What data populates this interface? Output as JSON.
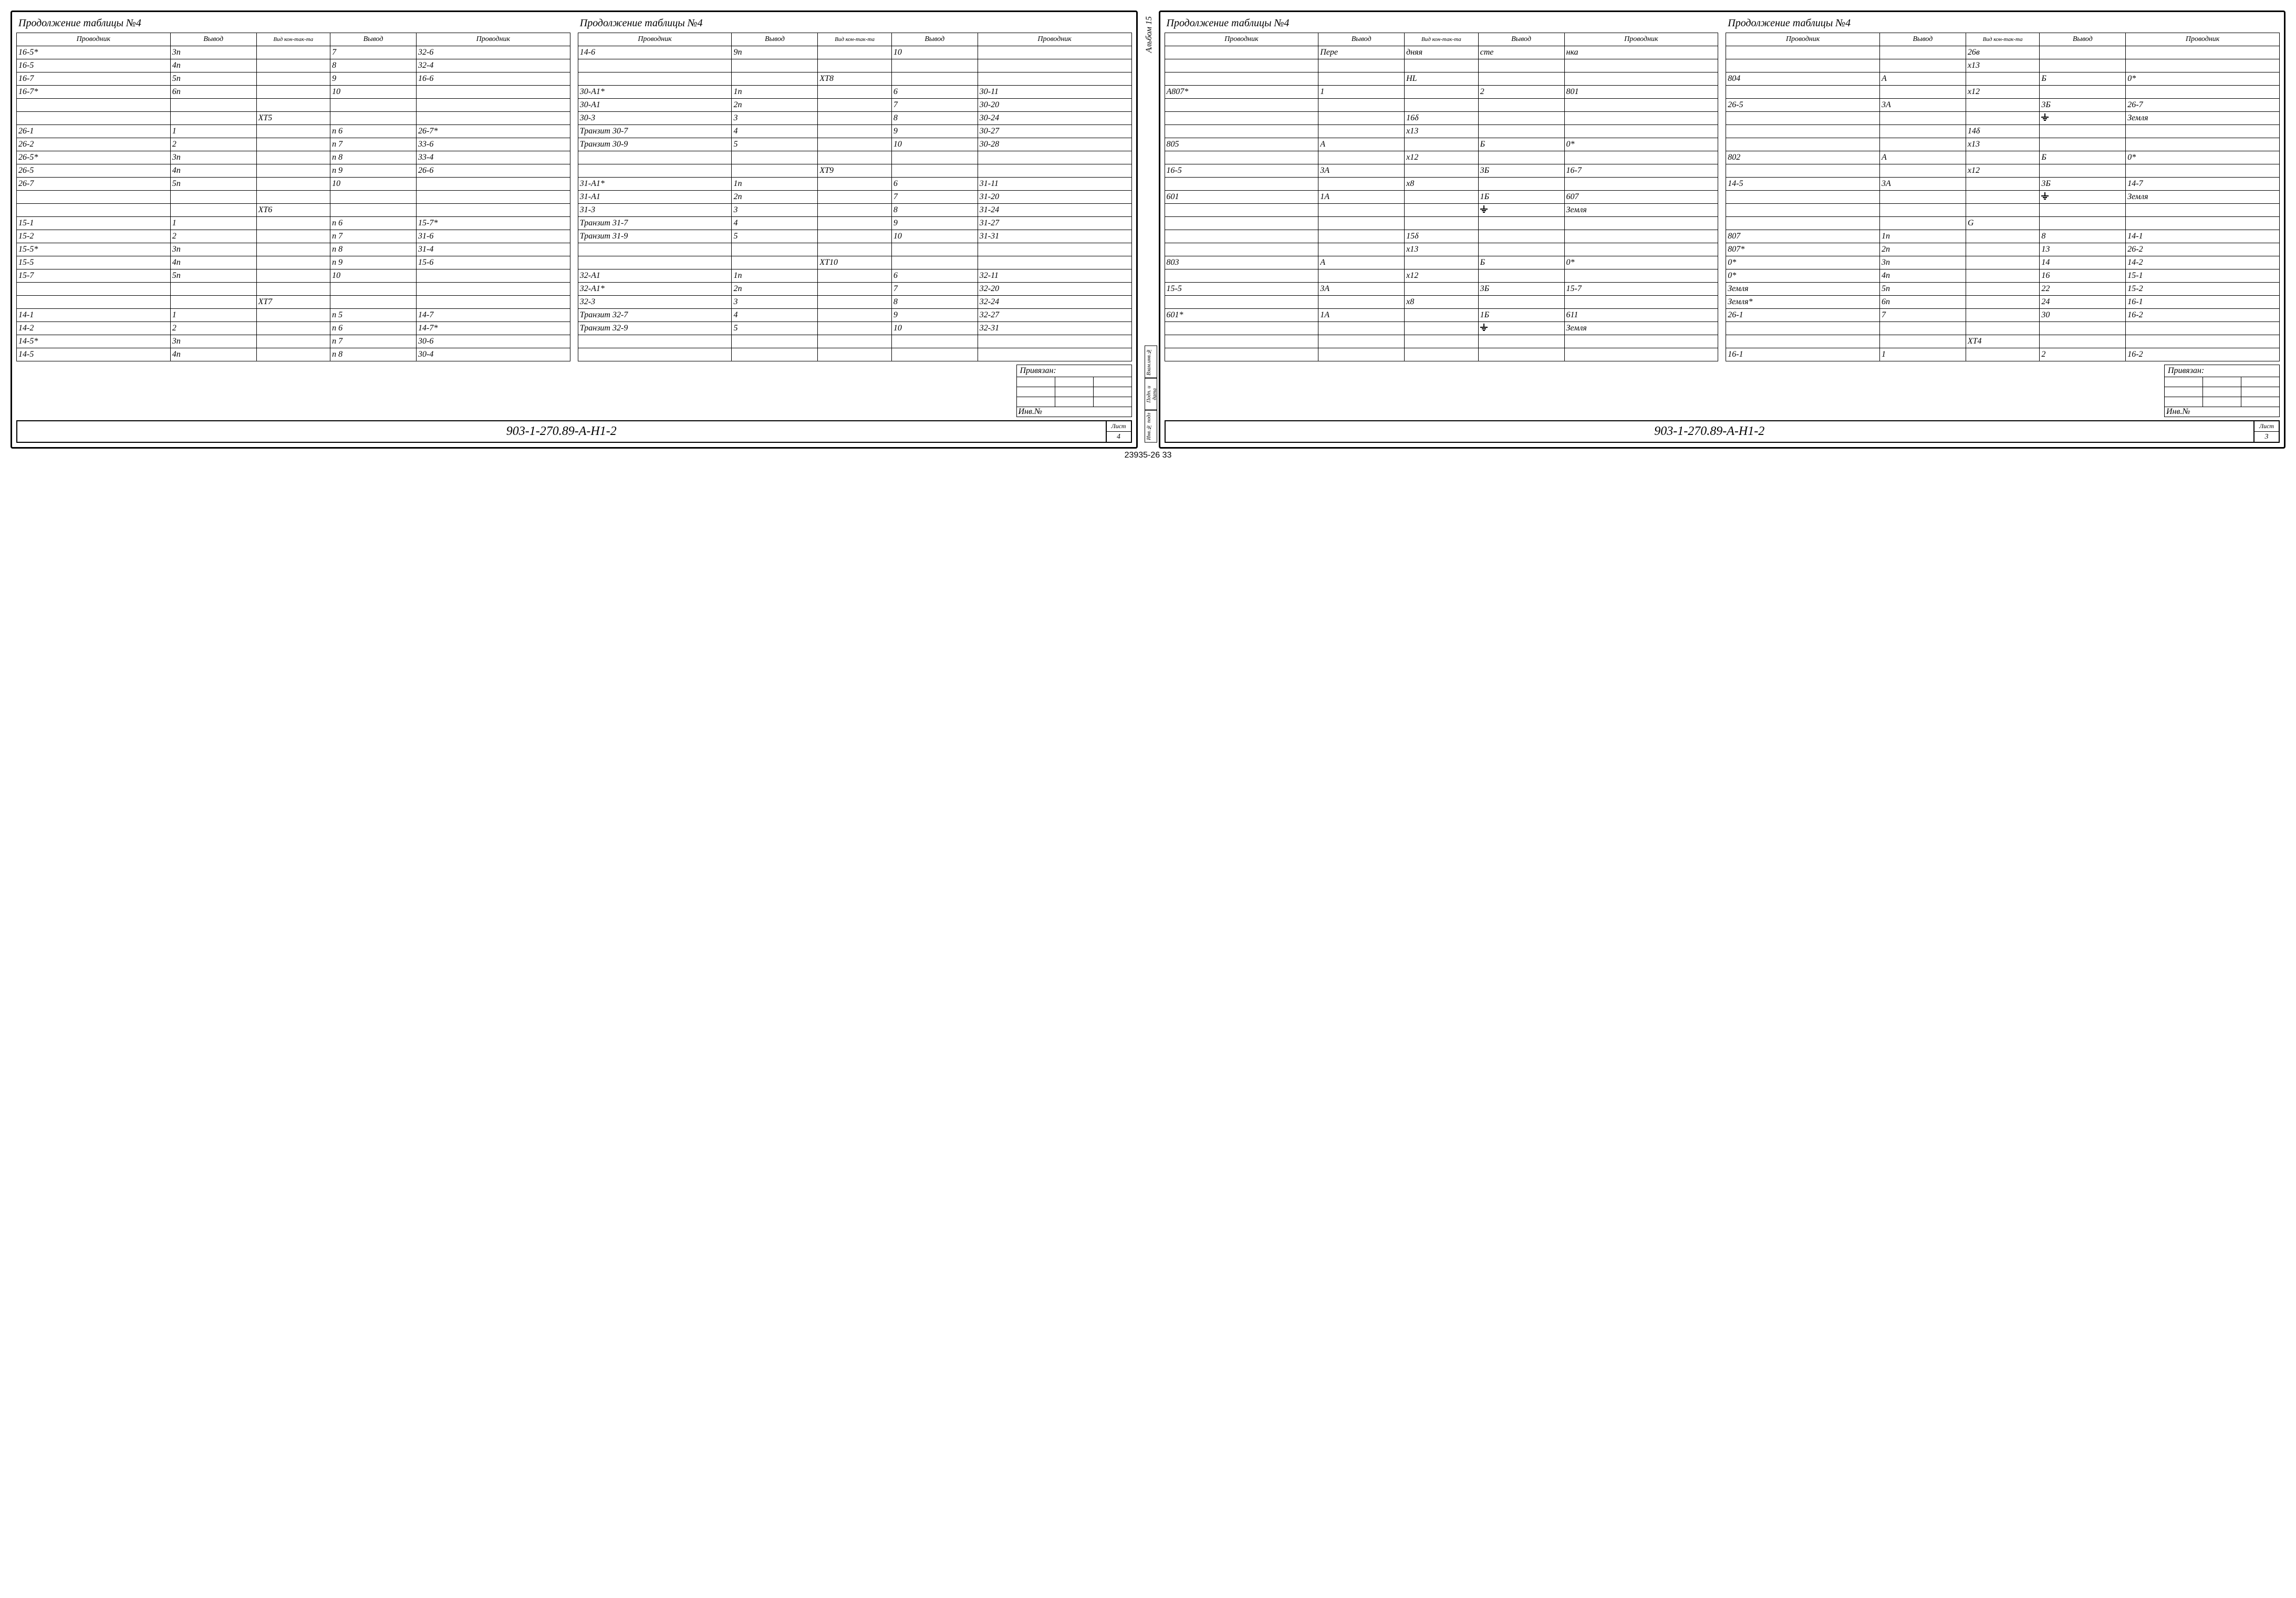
{
  "caption": "Продолжение таблицы №4",
  "headers": {
    "prov": "Проводник",
    "vyv": "Вывод",
    "vid": "Вид кон-так-та"
  },
  "privyazan": "Привязан:",
  "inv": "Инв.№",
  "docnum": "903-1-270.89-А-Н1-2",
  "list_label": "Лист",
  "album": "Альбом 15",
  "side_labels": [
    "Инв.№ подл",
    "Подп. и дата",
    "Взам.инв.№"
  ],
  "bottom_note": "23935-26   33",
  "sheets": [
    {
      "sheetno": "4",
      "tables": [
        {
          "rows": [
            [
              "16-5*",
              "3п",
              "",
              "7",
              "32-6"
            ],
            [
              "16-5",
              "4п",
              "",
              "8",
              "32-4"
            ],
            [
              "16-7",
              "5п",
              "",
              "9",
              "16-6"
            ],
            [
              "16-7*",
              "6п",
              "",
              "10",
              ""
            ],
            [
              "",
              "",
              "",
              "",
              ""
            ],
            [
              "",
              "",
              "ХТ5",
              "",
              ""
            ],
            [
              "26-1",
              "1",
              "",
              "п 6",
              "26-7*"
            ],
            [
              "26-2",
              "2",
              "",
              "п 7",
              "33-6"
            ],
            [
              "26-5*",
              "3п",
              "",
              "п 8",
              "33-4"
            ],
            [
              "26-5",
              "4п",
              "",
              "п 9",
              "26-6"
            ],
            [
              "26-7",
              "5п",
              "",
              "10",
              ""
            ],
            [
              "",
              "",
              "",
              "",
              ""
            ],
            [
              "",
              "",
              "ХТ6",
              "",
              ""
            ],
            [
              "15-1",
              "1",
              "",
              "п 6",
              "15-7*"
            ],
            [
              "15-2",
              "2",
              "",
              "п 7",
              "31-6"
            ],
            [
              "15-5*",
              "3п",
              "",
              "п 8",
              "31-4"
            ],
            [
              "15-5",
              "4п",
              "",
              "п 9",
              "15-6"
            ],
            [
              "15-7",
              "5п",
              "",
              "10",
              ""
            ],
            [
              "",
              "",
              "",
              "",
              ""
            ],
            [
              "",
              "",
              "ХТ7",
              "",
              ""
            ],
            [
              "14-1",
              "1",
              "",
              "п 5",
              "14-7"
            ],
            [
              "14-2",
              "2",
              "",
              "п 6",
              "14-7*"
            ],
            [
              "14-5*",
              "3п",
              "",
              "п 7",
              "30-6"
            ],
            [
              "14-5",
              "4п",
              "",
              "п 8",
              "30-4"
            ]
          ]
        },
        {
          "rows": [
            [
              "14-6",
              "9п",
              "",
              "10",
              ""
            ],
            [
              "",
              "",
              "",
              "",
              ""
            ],
            [
              "",
              "",
              "ХТ8",
              "",
              ""
            ],
            [
              "30-А1*",
              "1п",
              "",
              "6",
              "30-11"
            ],
            [
              "30-А1",
              "2п",
              "",
              "7",
              "30-20"
            ],
            [
              "30-3",
              "3",
              "",
              "8",
              "30-24"
            ],
            [
              "Транзит 30-7",
              "4",
              "",
              "9",
              "30-27"
            ],
            [
              "Транзит 30-9",
              "5",
              "",
              "10",
              "30-28"
            ],
            [
              "",
              "",
              "",
              "",
              ""
            ],
            [
              "",
              "",
              "ХТ9",
              "",
              ""
            ],
            [
              "31-А1*",
              "1п",
              "",
              "6",
              "31-11"
            ],
            [
              "31-А1",
              "2п",
              "",
              "7",
              "31-20"
            ],
            [
              "31-3",
              "3",
              "",
              "8",
              "31-24"
            ],
            [
              "Транзит 31-7",
              "4",
              "",
              "9",
              "31-27"
            ],
            [
              "Транзит 31-9",
              "5",
              "",
              "10",
              "31-31"
            ],
            [
              "",
              "",
              "",
              "",
              ""
            ],
            [
              "",
              "",
              "ХТ10",
              "",
              ""
            ],
            [
              "32-А1",
              "1п",
              "",
              "6",
              "32-11"
            ],
            [
              "32-А1*",
              "2п",
              "",
              "7",
              "32-20"
            ],
            [
              "32-3",
              "3",
              "",
              "8",
              "32-24"
            ],
            [
              "Транзит 32-7",
              "4",
              "",
              "9",
              "32-27"
            ],
            [
              "Транзит 32-9",
              "5",
              "",
              "10",
              "32-31"
            ],
            [
              "",
              "",
              "",
              "",
              ""
            ],
            [
              "",
              "",
              "",
              "",
              ""
            ]
          ]
        }
      ]
    },
    {
      "sheetno": "3",
      "tables": [
        {
          "rows": [
            [
              "",
              "Пере",
              "дняя",
              "сте",
              "нка"
            ],
            [
              "",
              "",
              "",
              "",
              ""
            ],
            [
              "",
              "",
              "HL",
              "",
              ""
            ],
            [
              "А807*",
              "1",
              "",
              "2",
              "801"
            ],
            [
              "",
              "",
              "",
              "",
              ""
            ],
            [
              "",
              "",
              "16δ",
              "",
              ""
            ],
            [
              "",
              "",
              "х13",
              "",
              ""
            ],
            [
              "805",
              "А",
              "",
              "Б",
              "0*"
            ],
            [
              "",
              "",
              "х12",
              "",
              ""
            ],
            [
              "16-5",
              "3А",
              "",
              "3Б",
              "16-7"
            ],
            [
              "",
              "",
              "х8",
              "",
              ""
            ],
            [
              "601",
              "1А",
              "",
              "1Б",
              "607"
            ],
            [
              "",
              "",
              "",
              "⏚",
              "Земля"
            ],
            [
              "",
              "",
              "",
              "",
              ""
            ],
            [
              "",
              "",
              "15δ",
              "",
              ""
            ],
            [
              "",
              "",
              "х13",
              "",
              ""
            ],
            [
              "803",
              "А",
              "",
              "Б",
              "0*"
            ],
            [
              "",
              "",
              "х12",
              "",
              ""
            ],
            [
              "15-5",
              "3А",
              "",
              "3Б",
              "15-7"
            ],
            [
              "",
              "",
              "х8",
              "",
              ""
            ],
            [
              "601*",
              "1А",
              "",
              "1Б",
              "611"
            ],
            [
              "",
              "",
              "",
              "⏚",
              "Земля"
            ],
            [
              "",
              "",
              "",
              "",
              ""
            ],
            [
              "",
              "",
              "",
              "",
              ""
            ]
          ]
        },
        {
          "rows": [
            [
              "",
              "",
              "26в",
              "",
              ""
            ],
            [
              "",
              "",
              "х13",
              "",
              ""
            ],
            [
              "804",
              "А",
              "",
              "Б",
              "0*"
            ],
            [
              "",
              "",
              "х12",
              "",
              ""
            ],
            [
              "26-5",
              "3А",
              "",
              "3Б",
              "26-7"
            ],
            [
              "",
              "",
              "",
              "⏚",
              "Земля"
            ],
            [
              "",
              "",
              "14δ",
              "",
              ""
            ],
            [
              "",
              "",
              "х13",
              "",
              ""
            ],
            [
              "802",
              "А",
              "",
              "Б",
              "0*"
            ],
            [
              "",
              "",
              "х12",
              "",
              ""
            ],
            [
              "14-5",
              "3А",
              "",
              "3Б",
              "14-7"
            ],
            [
              "",
              "",
              "",
              "⏚",
              "Земля"
            ],
            [
              "",
              "",
              "",
              "",
              ""
            ],
            [
              "",
              "",
              "G",
              "",
              ""
            ],
            [
              "807",
              "1п",
              "",
              "8",
              "14-1"
            ],
            [
              "807*",
              "2п",
              "",
              "13",
              "26-2"
            ],
            [
              "0*",
              "3п",
              "",
              "14",
              "14-2"
            ],
            [
              "0*",
              "4п",
              "",
              "16",
              "15-1"
            ],
            [
              "Земля",
              "5п",
              "",
              "22",
              "15-2"
            ],
            [
              "Земля*",
              "6п",
              "",
              "24",
              "16-1"
            ],
            [
              "26-1",
              "7",
              "",
              "30",
              "16-2"
            ],
            [
              "",
              "",
              "",
              "",
              ""
            ],
            [
              "",
              "",
              "ХТ4",
              "",
              ""
            ],
            [
              "16-1",
              "1",
              "",
              "2",
              "16-2"
            ]
          ]
        }
      ]
    }
  ]
}
